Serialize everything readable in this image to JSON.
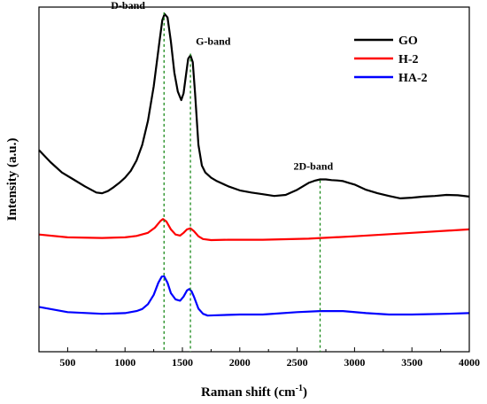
{
  "chart_data": {
    "type": "line",
    "title": "",
    "xlabel": "Raman shift (cm",
    "xlabel_sup": "-1",
    "xlabel_close": ")",
    "ylabel": "Intensity (a.u.)",
    "xlim": [
      250,
      4000
    ],
    "ylim": [
      0,
      1
    ],
    "x_ticks": [
      500,
      1000,
      1500,
      2000,
      2500,
      3000,
      3500,
      4000
    ],
    "y_ticks_shown": false,
    "grid": false,
    "legend_position": "top-right",
    "series": [
      {
        "name": "GO",
        "color": "#000000",
        "x": [
          250,
          350,
          450,
          550,
          650,
          750,
          800,
          850,
          900,
          950,
          1000,
          1050,
          1100,
          1150,
          1200,
          1250,
          1300,
          1325,
          1345,
          1370,
          1400,
          1430,
          1460,
          1490,
          1510,
          1530,
          1550,
          1570,
          1590,
          1610,
          1640,
          1670,
          1700,
          1750,
          1800,
          1900,
          2000,
          2100,
          2200,
          2300,
          2400,
          2500,
          2600,
          2650,
          2700,
          2750,
          2800,
          2850,
          2900,
          2950,
          3000,
          3100,
          3200,
          3300,
          3400,
          3500,
          3600,
          3700,
          3800,
          3900,
          4000
        ],
        "y": [
          0.585,
          0.55,
          0.52,
          0.5,
          0.48,
          0.462,
          0.46,
          0.466,
          0.477,
          0.49,
          0.505,
          0.525,
          0.555,
          0.6,
          0.67,
          0.77,
          0.9,
          0.962,
          0.98,
          0.97,
          0.9,
          0.81,
          0.755,
          0.73,
          0.75,
          0.8,
          0.85,
          0.86,
          0.84,
          0.75,
          0.6,
          0.54,
          0.52,
          0.505,
          0.495,
          0.48,
          0.468,
          0.462,
          0.457,
          0.452,
          0.455,
          0.47,
          0.49,
          0.496,
          0.5,
          0.5,
          0.498,
          0.497,
          0.495,
          0.49,
          0.485,
          0.47,
          0.46,
          0.452,
          0.445,
          0.447,
          0.45,
          0.452,
          0.455,
          0.454,
          0.45
        ]
      },
      {
        "name": "H-2",
        "color": "#ff0000",
        "x": [
          250,
          500,
          800,
          1000,
          1100,
          1200,
          1260,
          1310,
          1330,
          1360,
          1400,
          1440,
          1480,
          1510,
          1540,
          1570,
          1600,
          1640,
          1680,
          1750,
          1900,
          2200,
          2600,
          3000,
          3500,
          4000
        ],
        "y": [
          0.34,
          0.332,
          0.33,
          0.332,
          0.336,
          0.345,
          0.36,
          0.38,
          0.385,
          0.378,
          0.355,
          0.34,
          0.337,
          0.345,
          0.355,
          0.358,
          0.35,
          0.335,
          0.327,
          0.324,
          0.325,
          0.325,
          0.328,
          0.335,
          0.345,
          0.355
        ]
      },
      {
        "name": "HA-2",
        "color": "#0000ff",
        "x": [
          250,
          500,
          800,
          1000,
          1100,
          1150,
          1200,
          1250,
          1290,
          1320,
          1340,
          1370,
          1400,
          1440,
          1480,
          1510,
          1540,
          1560,
          1580,
          1600,
          1640,
          1680,
          1720,
          1800,
          2000,
          2200,
          2500,
          2700,
          2900,
          3100,
          3300,
          3500,
          3800,
          4000
        ],
        "y": [
          0.13,
          0.115,
          0.11,
          0.112,
          0.118,
          0.124,
          0.138,
          0.165,
          0.2,
          0.218,
          0.219,
          0.2,
          0.17,
          0.152,
          0.148,
          0.16,
          0.178,
          0.182,
          0.175,
          0.16,
          0.125,
          0.11,
          0.105,
          0.106,
          0.108,
          0.108,
          0.115,
          0.118,
          0.118,
          0.112,
          0.108,
          0.108,
          0.11,
          0.112
        ]
      }
    ],
    "annotations": [
      {
        "text": "D-band",
        "x": 1340,
        "line_top": 0.985
      },
      {
        "text": "G-band",
        "x": 1570,
        "line_top": 0.865
      },
      {
        "text": "2D-band",
        "x": 2700,
        "line_top": 0.497
      }
    ]
  }
}
